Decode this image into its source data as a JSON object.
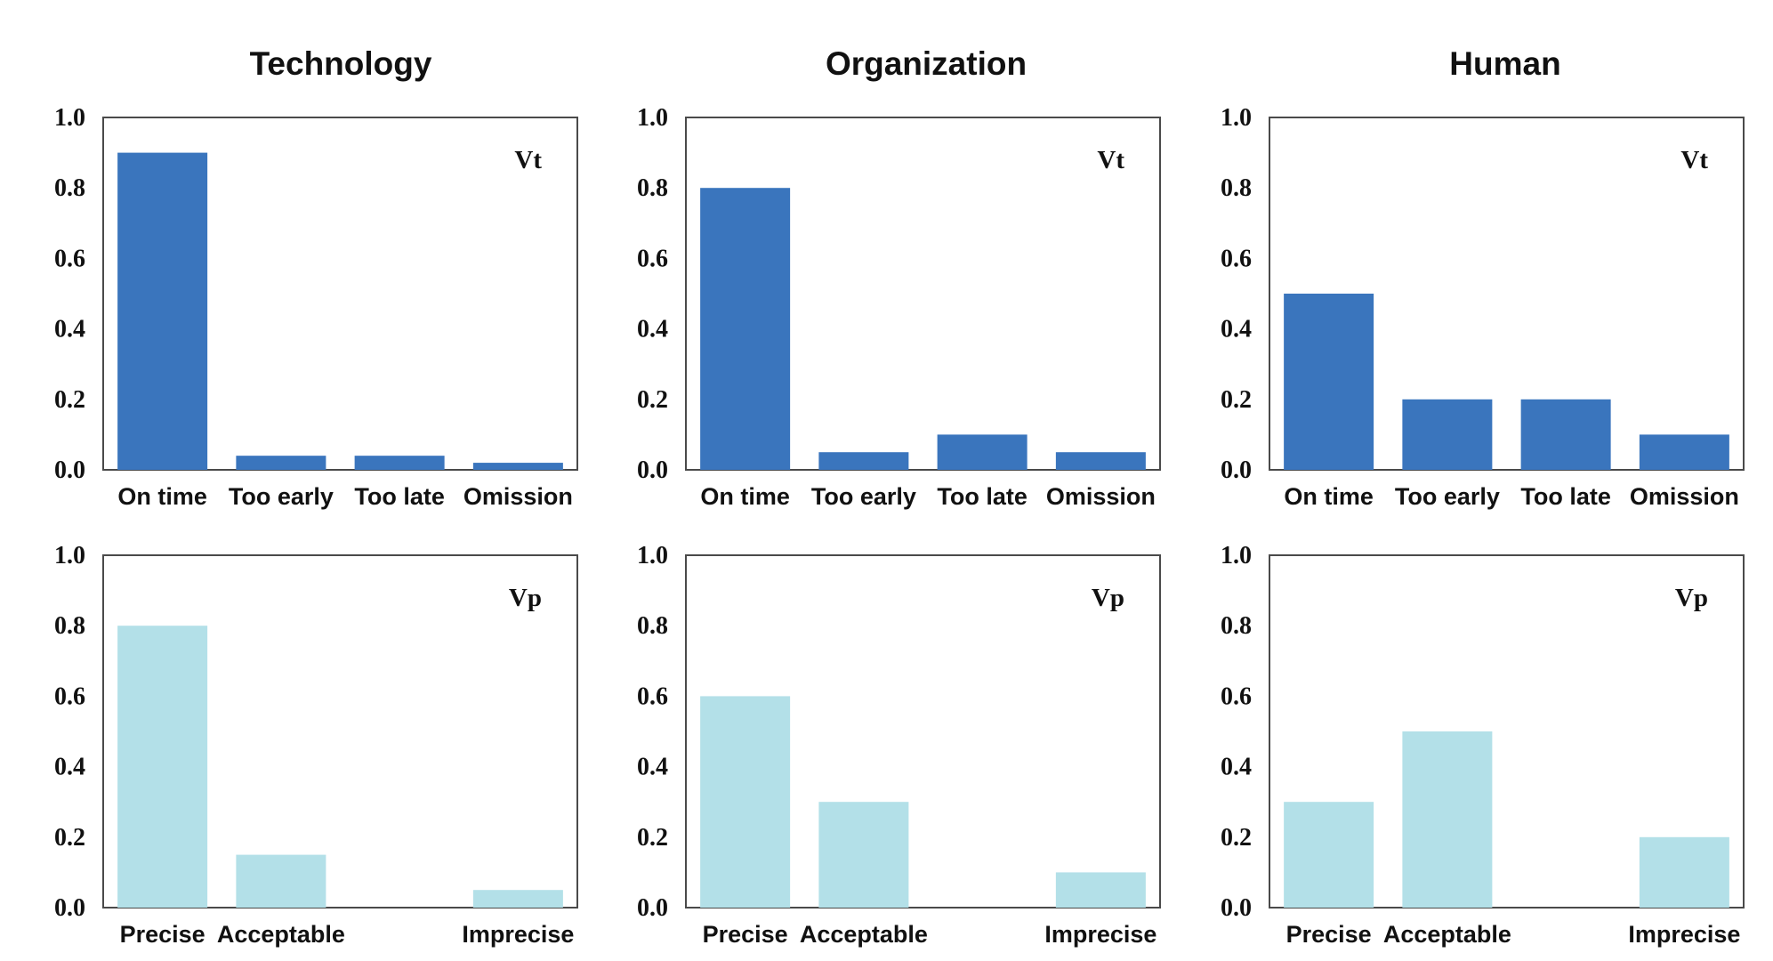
{
  "colors": {
    "timing_bar": "#3a75bd",
    "precision_bar": "#b3e0e8"
  },
  "columns": [
    {
      "title": "Technology"
    },
    {
      "title": "Organization"
    },
    {
      "title": "Human"
    }
  ],
  "chart_data": [
    {
      "type": "bar",
      "column": "Technology",
      "label": "Vt",
      "categories": [
        "On time",
        "Too early",
        "Too late",
        "Omission"
      ],
      "values": [
        0.9,
        0.04,
        0.04,
        0.02
      ],
      "ylim": [
        0,
        1.0
      ],
      "yticks": [
        "0.0",
        "0.2",
        "0.4",
        "0.6",
        "0.8",
        "1.0"
      ],
      "color": "#3a75bd"
    },
    {
      "type": "bar",
      "column": "Organization",
      "label": "Vt",
      "categories": [
        "On time",
        "Too early",
        "Too late",
        "Omission"
      ],
      "values": [
        0.8,
        0.05,
        0.1,
        0.05
      ],
      "ylim": [
        0,
        1.0
      ],
      "yticks": [
        "0.0",
        "0.2",
        "0.4",
        "0.6",
        "0.8",
        "1.0"
      ],
      "color": "#3a75bd"
    },
    {
      "type": "bar",
      "column": "Human",
      "label": "Vt",
      "categories": [
        "On time",
        "Too early",
        "Too late",
        "Omission"
      ],
      "values": [
        0.5,
        0.2,
        0.2,
        0.1
      ],
      "ylim": [
        0,
        1.0
      ],
      "yticks": [
        "0.0",
        "0.2",
        "0.4",
        "0.6",
        "0.8",
        "1.0"
      ],
      "color": "#3a75bd"
    },
    {
      "type": "bar",
      "column": "Technology",
      "label": "Vp",
      "categories": [
        "Precise",
        "Acceptable",
        "",
        "Imprecise"
      ],
      "values": [
        0.8,
        0.15,
        0,
        0.05
      ],
      "ylim": [
        0,
        1.0
      ],
      "yticks": [
        "0.0",
        "0.2",
        "0.4",
        "0.6",
        "0.8",
        "1.0"
      ],
      "color": "#b3e0e8"
    },
    {
      "type": "bar",
      "column": "Organization",
      "label": "Vp",
      "categories": [
        "Precise",
        "Acceptable",
        "",
        "Imprecise"
      ],
      "values": [
        0.6,
        0.3,
        0,
        0.1
      ],
      "ylim": [
        0,
        1.0
      ],
      "yticks": [
        "0.0",
        "0.2",
        "0.4",
        "0.6",
        "0.8",
        "1.0"
      ],
      "color": "#b3e0e8"
    },
    {
      "type": "bar",
      "column": "Human",
      "label": "Vp",
      "categories": [
        "Precise",
        "Acceptable",
        "",
        "Imprecise"
      ],
      "values": [
        0.3,
        0.5,
        0,
        0.2
      ],
      "ylim": [
        0,
        1.0
      ],
      "yticks": [
        "0.0",
        "0.2",
        "0.4",
        "0.6",
        "0.8",
        "1.0"
      ],
      "color": "#b3e0e8"
    }
  ]
}
